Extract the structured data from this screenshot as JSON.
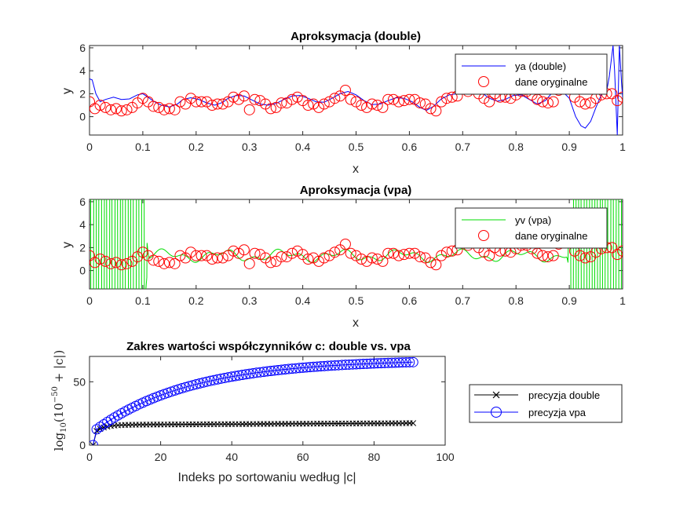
{
  "chart_data": [
    {
      "type": "line",
      "title": "Aproksymacja (double)",
      "xlabel": "x",
      "ylabel": "y",
      "xlim": [
        0,
        1
      ],
      "ylim": [
        -1.6,
        6.2
      ],
      "xticks": [
        "0",
        "0.1",
        "0.2",
        "0.3",
        "0.4",
        "0.5",
        "0.6",
        "0.7",
        "0.8",
        "0.9",
        "1"
      ],
      "yticks": [
        "0",
        "2",
        "4",
        "6"
      ],
      "legend": {
        "placement": "top-right"
      },
      "series": [
        {
          "name": "ya (double)",
          "style": "line",
          "color": "#0000ff",
          "points": [
            [
              0,
              3.3
            ],
            [
              0.005,
              3.2
            ],
            [
              0.012,
              2.0
            ],
            [
              0.02,
              1.3
            ],
            [
              0.03,
              1.5
            ],
            [
              0.045,
              1.7
            ],
            [
              0.06,
              1.5
            ],
            [
              0.075,
              1.55
            ],
            [
              0.09,
              1.9
            ],
            [
              0.1,
              2.0
            ],
            [
              0.11,
              1.7
            ],
            [
              0.12,
              1.35
            ],
            [
              0.135,
              1.0
            ],
            [
              0.15,
              0.85
            ],
            [
              0.165,
              1.1
            ],
            [
              0.175,
              1.5
            ],
            [
              0.19,
              1.65
            ],
            [
              0.205,
              1.5
            ],
            [
              0.22,
              1.2
            ],
            [
              0.235,
              1.0
            ],
            [
              0.25,
              1.25
            ],
            [
              0.26,
              1.6
            ],
            [
              0.275,
              1.85
            ],
            [
              0.29,
              1.8
            ],
            [
              0.305,
              1.45
            ],
            [
              0.32,
              1.1
            ],
            [
              0.335,
              1.0
            ],
            [
              0.35,
              1.15
            ],
            [
              0.365,
              1.5
            ],
            [
              0.38,
              1.8
            ],
            [
              0.395,
              1.85
            ],
            [
              0.41,
              1.6
            ],
            [
              0.425,
              1.3
            ],
            [
              0.44,
              1.25
            ],
            [
              0.455,
              1.6
            ],
            [
              0.47,
              2.0
            ],
            [
              0.485,
              2.2
            ],
            [
              0.5,
              1.9
            ],
            [
              0.515,
              1.4
            ],
            [
              0.53,
              1.05
            ],
            [
              0.545,
              1.1
            ],
            [
              0.56,
              1.4
            ],
            [
              0.575,
              1.65
            ],
            [
              0.59,
              1.6
            ],
            [
              0.605,
              1.3
            ],
            [
              0.62,
              0.8
            ],
            [
              0.632,
              0.55
            ],
            [
              0.645,
              0.9
            ],
            [
              0.66,
              1.55
            ],
            [
              0.675,
              1.9
            ],
            [
              0.69,
              2.0
            ],
            [
              0.705,
              2.1
            ],
            [
              0.72,
              2.3
            ],
            [
              0.735,
              2.1
            ],
            [
              0.75,
              1.6
            ],
            [
              0.765,
              1.35
            ],
            [
              0.78,
              1.5
            ],
            [
              0.795,
              1.85
            ],
            [
              0.81,
              1.9
            ],
            [
              0.825,
              1.5
            ],
            [
              0.84,
              1.1
            ],
            [
              0.855,
              1.4
            ],
            [
              0.87,
              2.2
            ],
            [
              0.885,
              2.3
            ],
            [
              0.9,
              1.6
            ],
            [
              0.912,
              0.0
            ],
            [
              0.922,
              -0.8
            ],
            [
              0.93,
              -1.0
            ],
            [
              0.94,
              -0.4
            ],
            [
              0.95,
              0.8
            ],
            [
              0.96,
              1.9
            ],
            [
              0.97,
              2.2
            ],
            [
              0.975,
              3.5
            ],
            [
              0.982,
              6.2
            ],
            [
              0.985,
              4.0
            ],
            [
              0.99,
              -1.6
            ],
            [
              0.994,
              6.2
            ],
            [
              0.998,
              3.0
            ],
            [
              1.0,
              1.7
            ]
          ]
        },
        {
          "name": "dane oryginalne",
          "style": "marker-circle",
          "color": "#ff0000",
          "x": [
            0,
            0.01,
            0.02,
            0.03,
            0.04,
            0.05,
            0.06,
            0.07,
            0.08,
            0.09,
            0.1,
            0.11,
            0.12,
            0.13,
            0.14,
            0.15,
            0.16,
            0.17,
            0.18,
            0.19,
            0.2,
            0.21,
            0.22,
            0.23,
            0.24,
            0.25,
            0.26,
            0.27,
            0.28,
            0.29,
            0.3,
            0.31,
            0.32,
            0.33,
            0.34,
            0.35,
            0.36,
            0.37,
            0.38,
            0.39,
            0.4,
            0.41,
            0.42,
            0.43,
            0.44,
            0.45,
            0.46,
            0.47,
            0.48,
            0.49,
            0.5,
            0.51,
            0.52,
            0.53,
            0.54,
            0.55,
            0.56,
            0.57,
            0.58,
            0.59,
            0.6,
            0.61,
            0.62,
            0.63,
            0.64,
            0.65,
            0.66,
            0.67,
            0.68,
            0.69,
            0.7,
            0.71,
            0.72,
            0.73,
            0.74,
            0.75,
            0.76,
            0.77,
            0.78,
            0.79,
            0.8,
            0.81,
            0.82,
            0.83,
            0.84,
            0.85,
            0.86,
            0.87,
            0.88,
            0.89,
            0.9,
            0.91,
            0.92,
            0.93,
            0.94,
            0.95,
            0.96,
            0.97,
            0.98,
            0.99,
            1.0
          ],
          "y": [
            1.3,
            0.7,
            1.0,
            0.8,
            0.6,
            0.7,
            0.5,
            0.6,
            0.8,
            1.2,
            1.6,
            1.3,
            0.9,
            0.8,
            0.6,
            0.7,
            0.6,
            1.3,
            1.1,
            1.6,
            1.3,
            1.3,
            1.3,
            1.0,
            1.1,
            1.1,
            1.3,
            1.7,
            1.5,
            1.8,
            0.6,
            1.5,
            1.4,
            1.1,
            0.7,
            0.8,
            1.2,
            1.2,
            1.5,
            1.7,
            1.4,
            1.0,
            1.1,
            0.8,
            1.1,
            1.3,
            1.6,
            1.8,
            2.3,
            1.5,
            1.3,
            1.0,
            0.8,
            1.1,
            1.0,
            0.8,
            1.5,
            1.5,
            1.3,
            1.4,
            1.5,
            1.5,
            1.2,
            1.1,
            0.7,
            0.5,
            1.3,
            1.6,
            1.7,
            1.8,
            2.5,
            2.2,
            2.5,
            2.0,
            1.6,
            1.3,
            2.0,
            1.7,
            1.7,
            1.6,
            1.9,
            2.2,
            2.2,
            1.9,
            1.5,
            1.3,
            1.2,
            1.3,
            2.3,
            2.5,
            2.7,
            1.7,
            1.3,
            1.1,
            1.2,
            1.6,
            1.9,
            2.0,
            2.0,
            1.4,
            1.7
          ]
        }
      ]
    },
    {
      "type": "line",
      "title": "Aproksymacja (vpa)",
      "xlabel": "x",
      "ylabel": "y",
      "xlim": [
        0,
        1
      ],
      "ylim": [
        -1.6,
        6.2
      ],
      "xticks": [
        "0",
        "0.1",
        "0.2",
        "0.3",
        "0.4",
        "0.5",
        "0.6",
        "0.7",
        "0.8",
        "0.9",
        "1"
      ],
      "yticks": [
        "0",
        "2",
        "4",
        "6"
      ],
      "legend": {
        "placement": "top-right"
      },
      "series": [
        {
          "name": "yv (vpa)",
          "style": "line",
          "color": "#00dd00"
        },
        {
          "name": "dane oryginalne",
          "style": "marker-circle",
          "color": "#ff0000"
        }
      ]
    },
    {
      "type": "line",
      "title": "Zakres wartości współczynników c: double vs. vpa",
      "xlabel": "Indeks po sortowaniu według |c|",
      "ylabel_parts": {
        "prefix": "log",
        "sub": "10",
        "open": "(10",
        "sup": "−50",
        "rest": " + |c|)"
      },
      "xlim": [
        0,
        100
      ],
      "ylim": [
        0,
        70
      ],
      "xticks": [
        "0",
        "20",
        "40",
        "60",
        "80",
        "100"
      ],
      "yticks": [
        "0",
        "50"
      ],
      "legend": {
        "placement": "outside-right"
      },
      "series": [
        {
          "name": "precyzja double",
          "marker": "x",
          "color": "#000000",
          "n": 91
        },
        {
          "name": "precyzja vpa",
          "marker": "circle",
          "color": "#0000ff",
          "n": 91
        }
      ]
    }
  ]
}
